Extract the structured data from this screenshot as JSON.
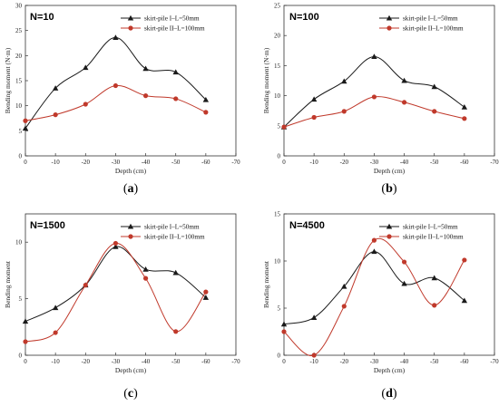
{
  "colors": {
    "series1": "#1a1a1a",
    "series2": "#c0392b",
    "axis": "#333333"
  },
  "chart_data": [
    {
      "type": "line",
      "panel_label": "a",
      "title": "N=10",
      "xlabel": "Depth (cm)",
      "ylabel": "Bending moment (N·m)",
      "x": [
        0,
        -10,
        -20,
        -30,
        -40,
        -50,
        -60
      ],
      "xlim": [
        0,
        -70
      ],
      "ylim": [
        0,
        30
      ],
      "xticks": [
        0,
        -10,
        -20,
        -30,
        -40,
        -50,
        -60,
        -70
      ],
      "yticks": [
        0,
        5,
        10,
        15,
        20,
        25,
        30
      ],
      "legend": "top-right",
      "series": [
        {
          "name": "skirt-pile I–L=50mm",
          "marker": "triangle",
          "values": [
            5.5,
            13.5,
            17.6,
            23.6,
            17.4,
            16.7,
            11.2
          ]
        },
        {
          "name": "skirt-pile II–L=100mm",
          "marker": "circle",
          "values": [
            7.0,
            8.2,
            10.3,
            14.0,
            12.0,
            11.4,
            8.7
          ]
        }
      ]
    },
    {
      "type": "line",
      "panel_label": "b",
      "title": "N=100",
      "xlabel": "Depth (cm)",
      "ylabel": "Bending moment (N·m)",
      "x": [
        0,
        -10,
        -20,
        -30,
        -40,
        -50,
        -60
      ],
      "xlim": [
        0,
        -70
      ],
      "ylim": [
        0,
        25
      ],
      "xticks": [
        0,
        -10,
        -20,
        -30,
        -40,
        -50,
        -60,
        -70
      ],
      "yticks": [
        0,
        5,
        10,
        15,
        20,
        25
      ],
      "legend": "top-right",
      "series": [
        {
          "name": "skirt-pile I–L=50mm",
          "marker": "triangle",
          "values": [
            4.8,
            9.4,
            12.4,
            16.5,
            12.5,
            11.5,
            8.1
          ]
        },
        {
          "name": "skirt-pile II–L=100mm",
          "marker": "circle",
          "values": [
            4.8,
            6.4,
            7.4,
            9.8,
            8.9,
            7.4,
            6.2
          ]
        }
      ]
    },
    {
      "type": "line",
      "panel_label": "c",
      "title": "N=1500",
      "xlabel": "Depth (cm)",
      "ylabel": "Bending moment",
      "x": [
        0,
        -10,
        -20,
        -30,
        -40,
        -50,
        -60
      ],
      "xlim": [
        0,
        -70
      ],
      "ylim": [
        0,
        12.5
      ],
      "xticks": [
        0,
        -10,
        -20,
        -30,
        -40,
        -50,
        -60,
        -70
      ],
      "yticks": [
        0,
        5,
        10
      ],
      "legend": "top-right",
      "series": [
        {
          "name": "skirt-pile I–L=50mm",
          "marker": "triangle",
          "values": [
            3.0,
            4.2,
            6.2,
            9.6,
            7.6,
            7.3,
            5.1
          ]
        },
        {
          "name": "skirt-pile II–L=100mm",
          "marker": "circle",
          "values": [
            1.2,
            2.0,
            6.2,
            9.9,
            6.8,
            2.1,
            5.6
          ]
        }
      ]
    },
    {
      "type": "line",
      "panel_label": "d",
      "title": "N=4500",
      "xlabel": "Depth (cm)",
      "ylabel": "Bending moment",
      "x": [
        0,
        -10,
        -20,
        -30,
        -40,
        -50,
        -60
      ],
      "xlim": [
        0,
        -70
      ],
      "ylim": [
        0,
        15
      ],
      "xticks": [
        0,
        -10,
        -20,
        -30,
        -40,
        -50,
        -60,
        -70
      ],
      "yticks": [
        0,
        5,
        10,
        15
      ],
      "legend": "top-right",
      "series": [
        {
          "name": "skirt-pile I–L=50mm",
          "marker": "triangle",
          "values": [
            3.3,
            4.0,
            7.3,
            11.0,
            7.6,
            8.2,
            5.8
          ]
        },
        {
          "name": "skirt-pile II–L=100mm",
          "marker": "circle",
          "values": [
            2.5,
            0.0,
            5.2,
            12.2,
            9.9,
            5.3,
            10.1
          ]
        }
      ]
    }
  ]
}
